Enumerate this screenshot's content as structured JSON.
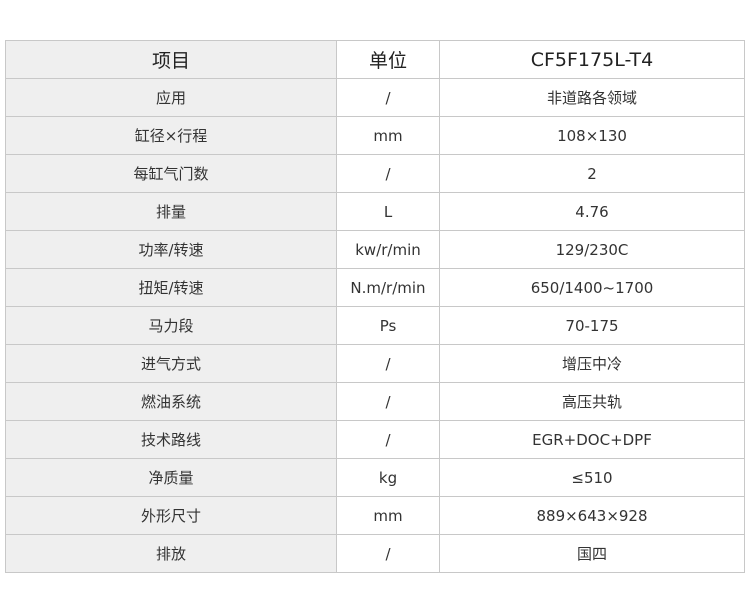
{
  "header": [
    "项目",
    "单位",
    "CF5F175L-T4"
  ],
  "rows": [
    [
      "应用",
      "/",
      "非道路各领域"
    ],
    [
      "缸径×行程",
      "mm",
      "108×130"
    ],
    [
      "每缸气门数",
      "/",
      "2"
    ],
    [
      "排量",
      "L",
      "4.76"
    ],
    [
      "功率/转速",
      "kw/r/min",
      "129/230C"
    ],
    [
      "扭矩/转速",
      "N.m/r/min",
      "650/1400~1700"
    ],
    [
      "马力段",
      "Ps",
      "70-175"
    ],
    [
      "进气方式",
      "/",
      "增压中冷"
    ],
    [
      "燃油系统",
      "/",
      "高压共轨"
    ],
    [
      "技术路线",
      "/",
      "EGR+DOC+DPF"
    ],
    [
      "净质量",
      "kg",
      "≤510"
    ],
    [
      "外形尺寸",
      "mm",
      "889×643×928"
    ],
    [
      "排放",
      "/",
      "国四"
    ]
  ]
}
